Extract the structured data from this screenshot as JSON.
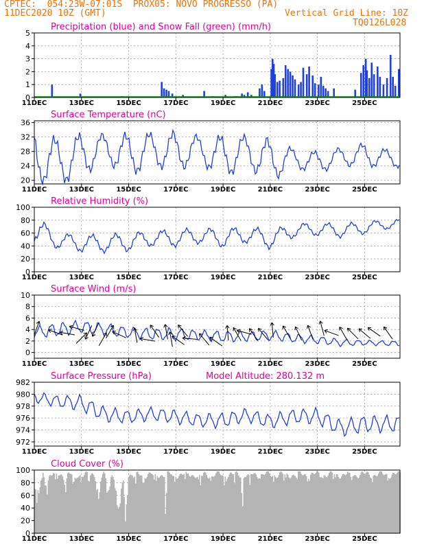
{
  "header": {
    "line1": "CPTEC:  054:23W-07:01S  PROX05: NOVO PROGRESSO (PA)",
    "line2_left": "11DEC2020 10Z (GMT)",
    "line2_right": "Vertical Grid Line: 10Z",
    "code": "TQ0126L028"
  },
  "colors": {
    "title": "#e0009a",
    "header": "#e8730c",
    "series": "#1f3fe0",
    "snow": "#00a000",
    "cloud": "#b4b4b4",
    "arrow": "#000000"
  },
  "x_axis": {
    "labels": [
      "11DEC",
      "13DEC",
      "15DEC",
      "17DEC",
      "19DEC",
      "21DEC",
      "23DEC",
      "25DEC"
    ],
    "label_days": [
      0,
      2,
      4,
      6,
      8,
      10,
      12,
      14
    ],
    "range_days": [
      0,
      15.5
    ]
  },
  "chart_data": [
    {
      "type": "bar",
      "title": "Precipitation (blue) and Snow Fall (green) (mm/h)",
      "ylim": [
        0,
        5
      ],
      "yticks": [
        0,
        1,
        2,
        3,
        4,
        5
      ],
      "grid": true,
      "series": [
        {
          "name": "Precipitation",
          "points": [
            [
              0.75,
              1.0
            ],
            [
              1.95,
              0.3
            ],
            [
              3.7,
              0.1
            ],
            [
              5.4,
              1.2
            ],
            [
              5.5,
              0.7
            ],
            [
              5.6,
              0.6
            ],
            [
              5.7,
              0.5
            ],
            [
              5.85,
              0.3
            ],
            [
              6.3,
              0.2
            ],
            [
              7.2,
              0.5
            ],
            [
              7.55,
              0.1
            ],
            [
              8.1,
              0.2
            ],
            [
              8.55,
              0.1
            ],
            [
              8.8,
              0.3
            ],
            [
              8.9,
              0.2
            ],
            [
              9.05,
              0.4
            ],
            [
              9.2,
              0.2
            ],
            [
              9.55,
              0.7
            ],
            [
              9.65,
              1.0
            ],
            [
              9.75,
              0.5
            ],
            [
              10.05,
              2.2
            ],
            [
              10.1,
              3.0
            ],
            [
              10.15,
              2.6
            ],
            [
              10.2,
              1.8
            ],
            [
              10.3,
              1.2
            ],
            [
              10.4,
              1.3
            ],
            [
              10.55,
              1.5
            ],
            [
              10.65,
              2.5
            ],
            [
              10.75,
              2.2
            ],
            [
              10.85,
              2.0
            ],
            [
              10.95,
              1.7
            ],
            [
              11.05,
              1.4
            ],
            [
              11.2,
              1.0
            ],
            [
              11.3,
              1.2
            ],
            [
              11.4,
              2.3
            ],
            [
              11.55,
              1.8
            ],
            [
              11.65,
              2.4
            ],
            [
              11.8,
              1.7
            ],
            [
              11.9,
              1.1
            ],
            [
              12.05,
              1.0
            ],
            [
              12.15,
              1.6
            ],
            [
              12.25,
              0.9
            ],
            [
              12.35,
              0.7
            ],
            [
              12.45,
              0.5
            ],
            [
              12.7,
              0.7
            ],
            [
              13.6,
              0.6
            ],
            [
              13.85,
              1.9
            ],
            [
              13.95,
              2.5
            ],
            [
              14.05,
              3.0
            ],
            [
              14.1,
              2.1
            ],
            [
              14.2,
              1.5
            ],
            [
              14.3,
              2.7
            ],
            [
              14.4,
              1.8
            ],
            [
              14.55,
              2.4
            ],
            [
              14.65,
              1.6
            ],
            [
              14.8,
              1.0
            ],
            [
              14.95,
              1.5
            ],
            [
              15.1,
              3.3
            ],
            [
              15.2,
              1.6
            ],
            [
              15.3,
              0.9
            ],
            [
              15.45,
              2.2
            ]
          ]
        },
        {
          "name": "Snow Fall",
          "values": [
            0.03
          ]
        }
      ]
    },
    {
      "type": "line",
      "title": "Surface Temperature (nC)",
      "ylim": [
        19,
        36.5
      ],
      "yticks": [
        20,
        24,
        28,
        32,
        36
      ],
      "grid": true,
      "series": [
        {
          "name": "Temperature",
          "period": 1,
          "phase": 0.62,
          "amp": [
            14,
            12,
            11,
            7,
            11,
            8.7,
            10,
            7,
            11,
            8,
            11,
            5,
            5.5,
            4.6,
            6,
            4.5
          ],
          "mean": [
            27,
            25,
            27,
            29,
            27,
            28.5,
            28,
            28.5,
            26.5,
            28,
            25.5,
            26,
            25,
            26.5,
            27,
            26
          ]
        }
      ]
    },
    {
      "type": "line",
      "title": "Relative Humidity (%)",
      "ylim": [
        0,
        100
      ],
      "yticks": [
        0,
        20,
        40,
        60,
        80,
        100
      ],
      "grid": true,
      "series": [
        {
          "name": "Relative Humidity",
          "period": 1,
          "phase": 0.2,
          "amp": [
            38,
            22,
            24,
            25,
            26,
            22,
            24,
            22,
            26,
            24,
            26,
            20,
            18,
            20,
            17,
            14
          ],
          "mean": [
            66,
            48,
            44,
            44,
            46,
            52,
            52,
            56,
            52,
            58,
            50,
            64,
            66,
            64,
            68,
            74
          ]
        }
      ]
    },
    {
      "type": "line",
      "title": "Surface Wind (m/s)",
      "ylim": [
        -1,
        10
      ],
      "yticks": [
        0,
        2,
        4,
        6,
        8,
        10
      ],
      "grid": true,
      "series": [
        {
          "name": "Wind Speed",
          "period": 0.5,
          "phase": 0.1,
          "amp": [
            1.8,
            2.2,
            1.9,
            2,
            1.7,
            1.8,
            2,
            1.6,
            1.8,
            1.6,
            1.6,
            1.4,
            1.3,
            1.1,
            0.8,
            0.8
          ],
          "mean": [
            3.5,
            4,
            4.5,
            4,
            3.5,
            3.2,
            3.2,
            3,
            2.8,
            2.8,
            3,
            2.5,
            2.2,
            1.7,
            1.7,
            1.6
          ]
        }
      ],
      "arrows": [
        [
          0.1,
          4.2,
          -70
        ],
        [
          0.9,
          3.5,
          -160
        ],
        [
          1.4,
          3.3,
          -170
        ],
        [
          1.8,
          4.2,
          -165
        ],
        [
          2.0,
          2.5,
          -45
        ],
        [
          2.3,
          3.5,
          115
        ],
        [
          2.6,
          4,
          115
        ],
        [
          2.9,
          2.3,
          -60
        ],
        [
          3.2,
          3.6,
          -60
        ],
        [
          3.6,
          3.1,
          -155
        ],
        [
          4.3,
          3,
          -100
        ],
        [
          4.8,
          2.2,
          -170
        ],
        [
          5.1,
          3.7,
          -125
        ],
        [
          5.6,
          3.6,
          -100
        ],
        [
          5.8,
          2.3,
          -100
        ],
        [
          6.1,
          2.1,
          -145
        ],
        [
          6.6,
          2.4,
          -175
        ],
        [
          6.3,
          3.8,
          -130
        ],
        [
          7.2,
          2.3,
          -130
        ],
        [
          7.7,
          1.9,
          -145
        ],
        [
          8.2,
          3.4,
          -95
        ],
        [
          8.6,
          3.2,
          -120
        ],
        [
          8.9,
          3.5,
          -165
        ],
        [
          9.3,
          3.1,
          -125
        ],
        [
          9.7,
          3.2,
          -130
        ],
        [
          10.1,
          3.9,
          -95
        ],
        [
          10.7,
          3.5,
          -120
        ],
        [
          11.2,
          3.3,
          -115
        ],
        [
          11.7,
          3.5,
          -110
        ],
        [
          12.2,
          4.2,
          -105
        ],
        [
          12.6,
          3.4,
          -160
        ],
        [
          13.1,
          3.3,
          -120
        ],
        [
          13.5,
          3.3,
          -135
        ],
        [
          14.0,
          3.3,
          -140
        ],
        [
          14.4,
          3.6,
          -145
        ],
        [
          15.0,
          3.4,
          -125
        ]
      ]
    },
    {
      "type": "line",
      "title": "Surface Pressure (hPa)",
      "subtitle": "Model Altitude: 280.132 m",
      "ylim": [
        971.3,
        982
      ],
      "yticks": [
        972,
        974,
        976,
        978,
        980,
        982
      ],
      "grid": true,
      "series": [
        {
          "name": "Pressure",
          "period": 0.5,
          "phase": 0.8,
          "amp": [
            1.6,
            1.8,
            2.4,
            2.3,
            2,
            2,
            2.1,
            2,
            2.3,
            2,
            2.2,
            2.2,
            2.4,
            2.5,
            2.6,
            2.5
          ],
          "mean": [
            979.5,
            978.8,
            978.5,
            976.6,
            976.2,
            976.7,
            976.2,
            975.6,
            975.6,
            976.5,
            975.4,
            976.3,
            976.3,
            974.3,
            975,
            975
          ]
        }
      ]
    },
    {
      "type": "bar",
      "title": "Cloud Cover (%)",
      "ylim": [
        0,
        100
      ],
      "yticks": [
        0,
        20,
        40,
        60,
        80,
        100
      ],
      "grid": true,
      "series": [
        {
          "name": "Cloud Cover",
          "dips": [
            [
              0.1,
              0.25,
              55
            ],
            [
              0.5,
              0.12,
              65
            ],
            [
              0.9,
              0.1,
              85
            ],
            [
              1.3,
              0.1,
              70
            ],
            [
              1.65,
              0.12,
              78
            ],
            [
              1.95,
              0.08,
              88
            ],
            [
              2.3,
              0.1,
              82
            ],
            [
              2.7,
              0.15,
              55
            ],
            [
              3.1,
              0.15,
              60
            ],
            [
              3.55,
              0.2,
              30
            ],
            [
              3.85,
              0.12,
              20
            ],
            [
              4.25,
              0.1,
              82
            ],
            [
              4.6,
              0.1,
              80
            ],
            [
              5.1,
              0.12,
              84
            ],
            [
              5.55,
              0.05,
              5
            ],
            [
              5.9,
              0.1,
              85
            ],
            [
              6.4,
              0.08,
              88
            ],
            [
              7.0,
              0.15,
              82
            ],
            [
              7.5,
              0.1,
              86
            ],
            [
              8.05,
              0.1,
              80
            ],
            [
              8.45,
              0.08,
              86
            ],
            [
              8.8,
              0.06,
              35
            ],
            [
              9.1,
              0.08,
              80
            ],
            [
              9.6,
              0.08,
              90
            ],
            [
              10.1,
              0.1,
              88
            ],
            [
              10.6,
              0.1,
              85
            ],
            [
              11.1,
              0.1,
              88
            ],
            [
              11.6,
              0.1,
              86
            ],
            [
              12.15,
              0.1,
              90
            ],
            [
              12.7,
              0.1,
              88
            ],
            [
              13.4,
              0.12,
              88
            ],
            [
              14.3,
              0.1,
              90
            ],
            [
              15.0,
              0.12,
              90
            ]
          ]
        }
      ]
    }
  ]
}
